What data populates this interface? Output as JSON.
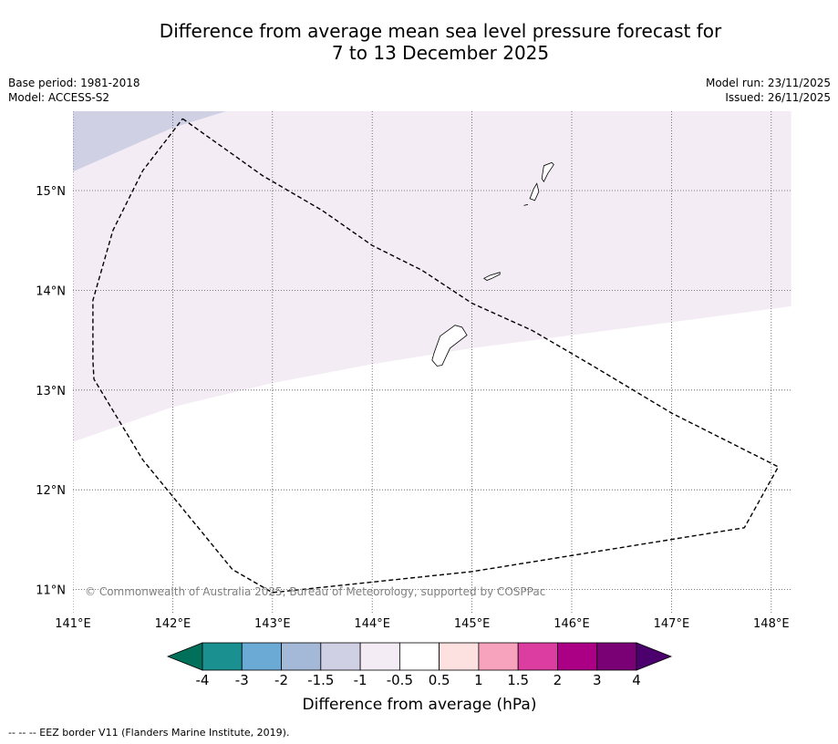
{
  "title": "Difference from average mean sea level pressure forecast for\n7 to 13 December 2025",
  "meta_left": {
    "base_period": "Base period: 1981-2018",
    "model": "Model: ACCESS-S2"
  },
  "meta_right": {
    "model_run": "Model run: 23/11/2025",
    "issued": "Issued: 26/11/2025"
  },
  "map": {
    "lon_range": [
      141.0,
      148.2
    ],
    "lat_range": [
      10.78,
      15.8
    ],
    "lon_ticks": [
      {
        "value": 141,
        "label": "141°E"
      },
      {
        "value": 142,
        "label": "142°E"
      },
      {
        "value": 143,
        "label": "143°E"
      },
      {
        "value": 144,
        "label": "144°E"
      },
      {
        "value": 145,
        "label": "145°E"
      },
      {
        "value": 146,
        "label": "146°E"
      },
      {
        "value": 147,
        "label": "147°E"
      },
      {
        "value": 148,
        "label": "148°E"
      }
    ],
    "lat_ticks": [
      {
        "value": 15,
        "label": "15°N"
      },
      {
        "value": 14,
        "label": "14°N"
      },
      {
        "value": 13,
        "label": "13°N"
      },
      {
        "value": 12,
        "label": "12°N"
      },
      {
        "value": 11,
        "label": "11°N"
      }
    ],
    "copyright": "© Commonwealth of Australia 2025, Bureau of Meteorology, supported by COSPPac",
    "colors": {
      "band_minus1": "#f4ecf5",
      "band_minus1_5": "#cfd0e4",
      "grid": "#555555",
      "land_outline": "#000000"
    },
    "anomaly_regions": [
      {
        "class": "-1 to -0.5 hPa",
        "color": "#f4ecf5",
        "boundary_lonlat": [
          [
            141.0,
            12.48
          ],
          [
            142.0,
            12.83
          ],
          [
            143.0,
            13.07
          ],
          [
            144.0,
            13.26
          ],
          [
            145.0,
            13.42
          ],
          [
            146.0,
            13.55
          ],
          [
            147.0,
            13.68
          ],
          [
            148.2,
            13.84
          ],
          [
            148.2,
            15.8
          ],
          [
            141.0,
            15.8
          ]
        ]
      },
      {
        "class": "-1.5 to -1 hPa",
        "color": "#cfd0e4",
        "boundary_lonlat": [
          [
            141.0,
            15.19
          ],
          [
            142.0,
            15.63
          ],
          [
            142.55,
            15.8
          ],
          [
            141.0,
            15.8
          ]
        ]
      }
    ],
    "eez_border_lonlat": [
      [
        142.1,
        15.72
      ],
      [
        142.9,
        15.15
      ],
      [
        143.5,
        14.8
      ],
      [
        144.0,
        14.45
      ],
      [
        144.5,
        14.2
      ],
      [
        145.0,
        13.87
      ],
      [
        145.6,
        13.6
      ],
      [
        146.2,
        13.25
      ],
      [
        147.0,
        12.77
      ],
      [
        148.07,
        12.23
      ],
      [
        147.73,
        11.62
      ],
      [
        145.0,
        11.18
      ],
      [
        143.0,
        10.97
      ],
      [
        142.6,
        11.2
      ],
      [
        141.7,
        12.3
      ],
      [
        141.21,
        13.11
      ],
      [
        141.2,
        13.3
      ],
      [
        141.2,
        13.9
      ],
      [
        141.4,
        14.6
      ],
      [
        141.7,
        15.2
      ],
      [
        142.1,
        15.72
      ]
    ],
    "islands_lonlat": [
      {
        "name": "Guam",
        "outline": [
          [
            144.62,
            13.37
          ],
          [
            144.68,
            13.54
          ],
          [
            144.83,
            13.65
          ],
          [
            144.9,
            13.63
          ],
          [
            144.95,
            13.55
          ],
          [
            144.78,
            13.42
          ],
          [
            144.7,
            13.25
          ],
          [
            144.65,
            13.24
          ],
          [
            144.6,
            13.3
          ]
        ]
      },
      {
        "name": "Rota",
        "outline": [
          [
            145.12,
            14.12
          ],
          [
            145.18,
            14.15
          ],
          [
            145.28,
            14.18
          ],
          [
            145.28,
            14.16
          ],
          [
            145.2,
            14.12
          ],
          [
            145.15,
            14.1
          ]
        ]
      },
      {
        "name": "Tinian",
        "outline": [
          [
            145.58,
            14.92
          ],
          [
            145.62,
            15.02
          ],
          [
            145.65,
            15.07
          ],
          [
            145.67,
            14.99
          ],
          [
            145.63,
            14.9
          ]
        ]
      },
      {
        "name": "Saipan",
        "outline": [
          [
            145.7,
            15.12
          ],
          [
            145.72,
            15.25
          ],
          [
            145.8,
            15.28
          ],
          [
            145.82,
            15.26
          ],
          [
            145.76,
            15.17
          ],
          [
            145.72,
            15.09
          ]
        ]
      },
      {
        "name": "Aguijan",
        "outline": [
          [
            145.52,
            14.85
          ],
          [
            145.56,
            14.86
          ]
        ]
      }
    ]
  },
  "colorbar": {
    "label": "Difference from average (hPa)",
    "ticks": [
      "-4",
      "-3",
      "-2",
      "-1.5",
      "-1",
      "-0.5",
      "0.5",
      "1",
      "1.5",
      "2",
      "3",
      "4"
    ],
    "colors": [
      "#1a9090",
      "#6aaad4",
      "#a4b9d8",
      "#cfd0e4",
      "#f4ecf5",
      "#ffffff",
      "#fde0e0",
      "#f8a3bd",
      "#db3ea0",
      "#ab0086",
      "#7a0076"
    ],
    "under_color": "#00705a",
    "over_color": "#4b006e"
  },
  "footnote": "-- -- -- EEZ border V11 (Flanders Marine Institute, 2019)."
}
